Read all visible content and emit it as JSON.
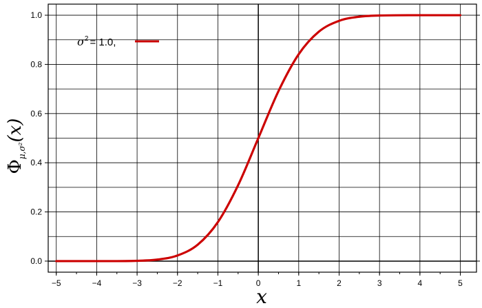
{
  "chart_data": {
    "type": "line",
    "function": "Φ(x) — normal cumulative distribution function, μ = 0",
    "xlabel": "x",
    "ylabel": {
      "main": "Φ",
      "subscript": "μ,σ²",
      "arg": "(x)"
    },
    "xlim": [
      -5.2,
      5.4
    ],
    "ylim": [
      -0.045,
      1.045
    ],
    "x_ticks": [
      -5,
      -4,
      -3,
      -2,
      -1,
      0,
      1,
      2,
      3,
      4,
      5
    ],
    "x_tick_labels": [
      "−5",
      "−4",
      "−3",
      "−2",
      "−1",
      "0",
      "1",
      "2",
      "3",
      "4",
      "5"
    ],
    "y_ticks": [
      0.0,
      0.2,
      0.4,
      0.6,
      0.8,
      1.0
    ],
    "y_tick_labels": [
      "0.0",
      "0.2",
      "0.4",
      "0.6",
      "0.8",
      "1.0"
    ],
    "grid": true,
    "legend_position": "top-left",
    "series": [
      {
        "name": "σ² = 1.0,",
        "color": "#cc0000",
        "mu": 0,
        "sigma2": 1.0,
        "x": [
          -5,
          -4,
          -3,
          -2.5,
          -2,
          -1.5,
          -1,
          -0.5,
          0,
          0.5,
          1,
          1.5,
          2,
          2.5,
          3,
          4,
          5
        ],
        "y": [
          0.0,
          0.0,
          0.0013,
          0.0062,
          0.0228,
          0.0668,
          0.1587,
          0.3085,
          0.5,
          0.6915,
          0.8413,
          0.9332,
          0.9772,
          0.9938,
          0.9987,
          1.0,
          1.0
        ]
      }
    ],
    "legend": {
      "sigma_symbol": "σ",
      "sup": "2",
      "value_text": "= 1.0,"
    }
  }
}
